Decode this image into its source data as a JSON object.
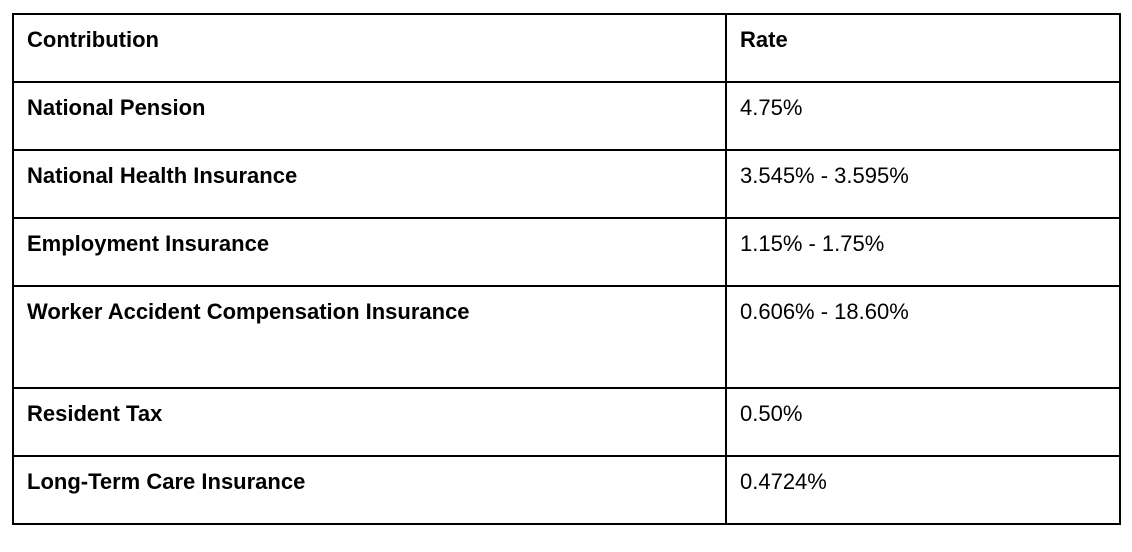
{
  "table": {
    "columns": [
      {
        "label": "Contribution"
      },
      {
        "label": "Rate"
      }
    ],
    "rows": [
      {
        "contribution": "National Pension",
        "rate": "4.75%"
      },
      {
        "contribution": "National Health Insurance",
        "rate": "3.545% - 3.595%"
      },
      {
        "contribution": "Employment Insurance",
        "rate": "1.15% - 1.75%"
      },
      {
        "contribution": "Worker Accident Compensation Insurance",
        "rate": "0.606% - 18.60%"
      },
      {
        "contribution": "Resident Tax",
        "rate": "0.50%"
      },
      {
        "contribution": "Long-Term Care Insurance",
        "rate": "0.4724%"
      }
    ]
  },
  "colors": {
    "border": "#000000",
    "text": "#000000",
    "background": "#ffffff"
  }
}
